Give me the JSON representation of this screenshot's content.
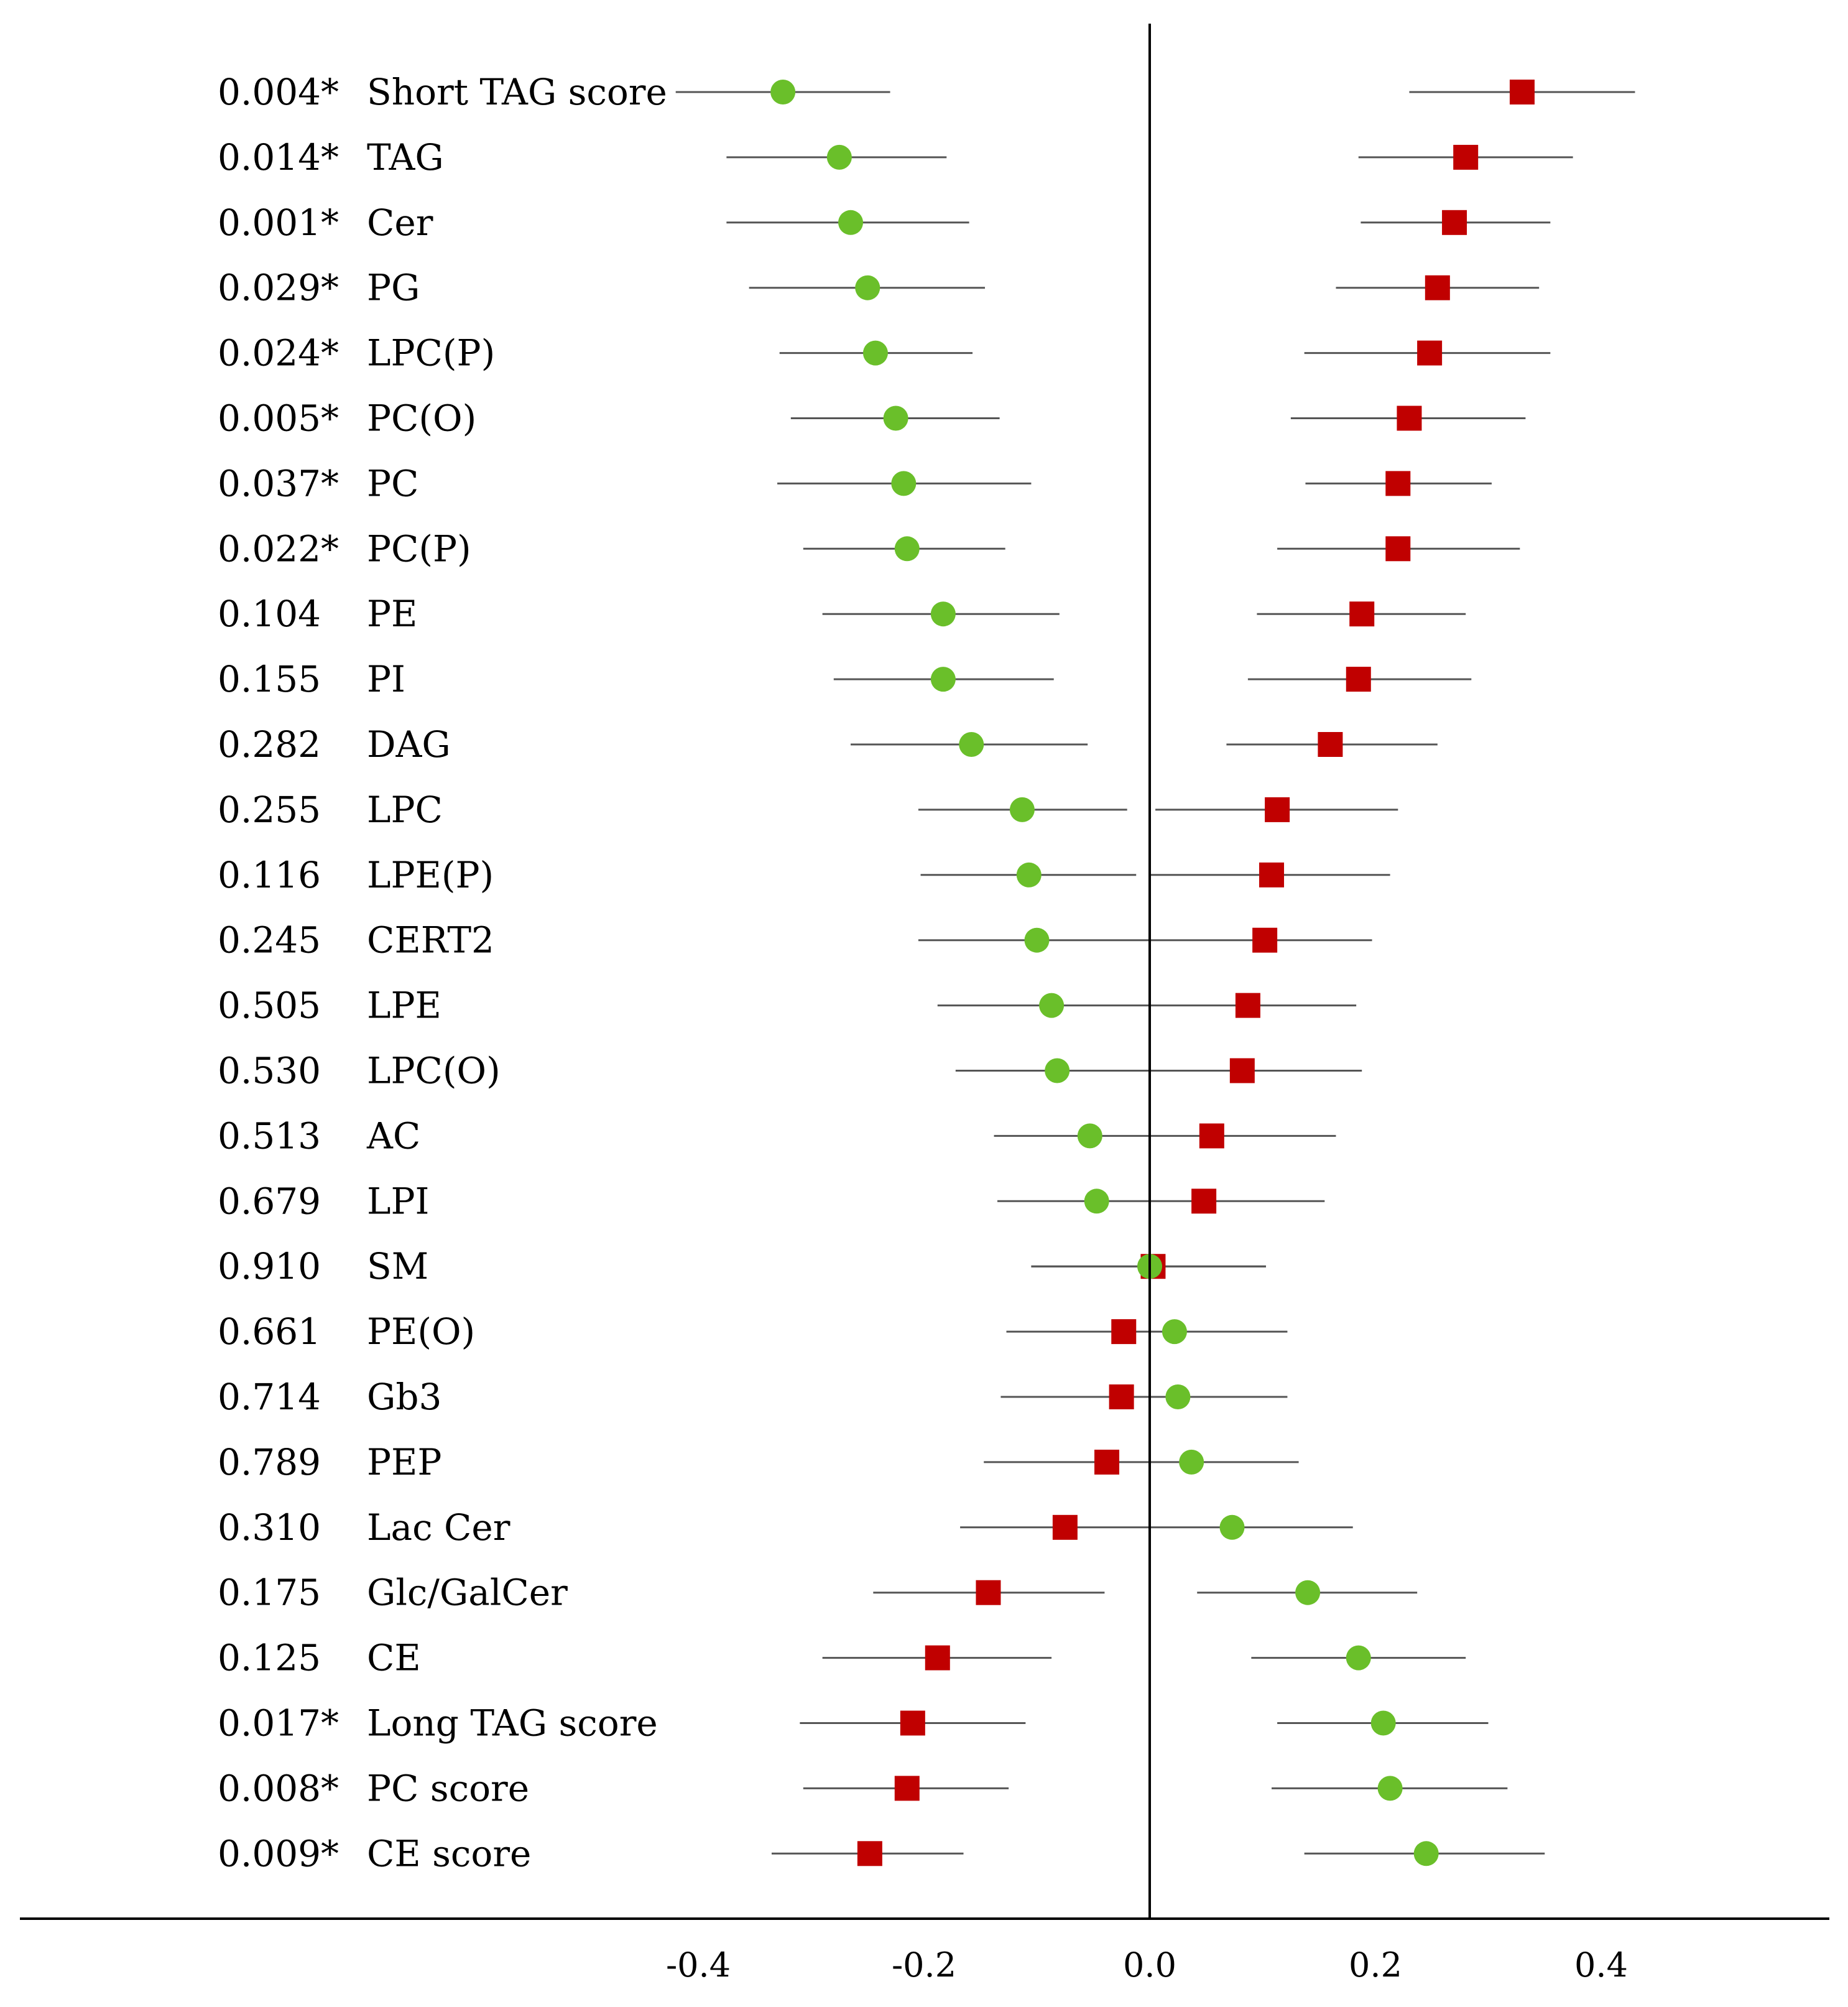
{
  "chart_data": {
    "type": "forest",
    "title": "",
    "xlabel": "",
    "ylabel": "",
    "xlim": [
      -1.0,
      0.6
    ],
    "xticks": [
      -0.4,
      -0.2,
      0.0,
      0.2,
      0.4
    ],
    "xtick_labels": [
      "-0.4",
      "-0.2",
      "0.0",
      "0.2",
      "0.4"
    ],
    "colors": {
      "green": "#6abf2a",
      "red": "#c00000",
      "line": "#555555",
      "axis": "#000000"
    },
    "rows": [
      {
        "p": "0.004*",
        "name": "Short TAG score",
        "green": {
          "est": -0.325,
          "lo": -0.42,
          "hi": -0.23
        },
        "red": {
          "est": 0.33,
          "lo": 0.23,
          "hi": 0.43
        }
      },
      {
        "p": "0.014*",
        "name": "TAG",
        "green": {
          "est": -0.275,
          "lo": -0.375,
          "hi": -0.18
        },
        "red": {
          "est": 0.28,
          "lo": 0.185,
          "hi": 0.375
        }
      },
      {
        "p": "0.001*",
        "name": "Cer",
        "green": {
          "est": -0.265,
          "lo": -0.375,
          "hi": -0.16
        },
        "red": {
          "est": 0.27,
          "lo": 0.187,
          "hi": 0.355
        }
      },
      {
        "p": "0.029*",
        "name": "PG",
        "green": {
          "est": -0.25,
          "lo": -0.355,
          "hi": -0.146
        },
        "red": {
          "est": 0.255,
          "lo": 0.165,
          "hi": 0.345
        }
      },
      {
        "p": "0.024*",
        "name": "LPC(P)",
        "green": {
          "est": -0.243,
          "lo": -0.328,
          "hi": -0.157
        },
        "red": {
          "est": 0.248,
          "lo": 0.137,
          "hi": 0.355
        }
      },
      {
        "p": "0.005*",
        "name": "PC(O)",
        "green": {
          "est": -0.225,
          "lo": -0.318,
          "hi": -0.133
        },
        "red": {
          "est": 0.23,
          "lo": 0.125,
          "hi": 0.333
        }
      },
      {
        "p": "0.037*",
        "name": "PC",
        "green": {
          "est": -0.218,
          "lo": -0.33,
          "hi": -0.105
        },
        "red": {
          "est": 0.22,
          "lo": 0.138,
          "hi": 0.303
        }
      },
      {
        "p": "0.022*",
        "name": "PC(P)",
        "green": {
          "est": -0.215,
          "lo": -0.307,
          "hi": -0.128
        },
        "red": {
          "est": 0.22,
          "lo": 0.113,
          "hi": 0.328
        }
      },
      {
        "p": "0.104",
        "name": "PE",
        "green": {
          "est": -0.183,
          "lo": -0.29,
          "hi": -0.08
        },
        "red": {
          "est": 0.188,
          "lo": 0.095,
          "hi": 0.28
        }
      },
      {
        "p": "0.155",
        "name": "PI",
        "green": {
          "est": -0.183,
          "lo": -0.28,
          "hi": -0.085
        },
        "red": {
          "est": 0.185,
          "lo": 0.087,
          "hi": 0.285
        }
      },
      {
        "p": "0.282",
        "name": "DAG",
        "green": {
          "est": -0.158,
          "lo": -0.265,
          "hi": -0.055
        },
        "red": {
          "est": 0.16,
          "lo": 0.068,
          "hi": 0.255
        }
      },
      {
        "p": "0.255",
        "name": "LPC",
        "green": {
          "est": -0.113,
          "lo": -0.205,
          "hi": -0.02
        },
        "red": {
          "est": 0.113,
          "lo": 0.005,
          "hi": 0.22
        }
      },
      {
        "p": "0.116",
        "name": "LPE(P)",
        "green": {
          "est": -0.107,
          "lo": -0.203,
          "hi": -0.012
        },
        "red": {
          "est": 0.108,
          "lo": 0.0,
          "hi": 0.213
        }
      },
      {
        "p": "0.245",
        "name": "CERT2",
        "green": {
          "est": -0.1,
          "lo": -0.205,
          "hi": 0.0
        },
        "red": {
          "est": 0.102,
          "lo": 0.0,
          "hi": 0.197
        }
      },
      {
        "p": "0.505",
        "name": "LPE",
        "green": {
          "est": -0.087,
          "lo": -0.188,
          "hi": 0.0
        },
        "red": {
          "est": 0.087,
          "lo": 0.0,
          "hi": 0.183
        }
      },
      {
        "p": "0.530",
        "name": "LPC(O)",
        "green": {
          "est": -0.082,
          "lo": -0.172,
          "hi": 0.0
        },
        "red": {
          "est": 0.082,
          "lo": 0.0,
          "hi": 0.188
        }
      },
      {
        "p": "0.513",
        "name": "AC",
        "green": {
          "est": -0.053,
          "lo": -0.138,
          "hi": 0.0
        },
        "red": {
          "est": 0.055,
          "lo": 0.0,
          "hi": 0.165
        }
      },
      {
        "p": "0.679",
        "name": "LPI",
        "green": {
          "est": -0.047,
          "lo": -0.135,
          "hi": 0.0
        },
        "red": {
          "est": 0.048,
          "lo": 0.0,
          "hi": 0.155
        }
      },
      {
        "p": "0.910",
        "name": "SM",
        "green": {
          "est": 0.0,
          "lo": -0.105,
          "hi": 0.103
        },
        "red": {
          "est": 0.003,
          "lo": -0.105,
          "hi": 0.103
        }
      },
      {
        "p": "0.661",
        "name": "PE(O)",
        "green": {
          "est": 0.022,
          "lo": 0.0,
          "hi": 0.122
        },
        "red": {
          "est": -0.023,
          "lo": -0.127,
          "hi": 0.0
        }
      },
      {
        "p": "0.714",
        "name": "Gb3",
        "green": {
          "est": 0.025,
          "lo": 0.0,
          "hi": 0.122
        },
        "red": {
          "est": -0.025,
          "lo": -0.132,
          "hi": 0.0
        }
      },
      {
        "p": "0.789",
        "name": "PEP",
        "green": {
          "est": 0.037,
          "lo": 0.0,
          "hi": 0.132
        },
        "red": {
          "est": -0.038,
          "lo": -0.147,
          "hi": 0.0
        }
      },
      {
        "p": "0.310",
        "name": "Lac Cer",
        "green": {
          "est": 0.073,
          "lo": 0.0,
          "hi": 0.18
        },
        "red": {
          "est": -0.075,
          "lo": -0.168,
          "hi": 0.0
        }
      },
      {
        "p": "0.175",
        "name": "Glc/GalCer",
        "green": {
          "est": 0.14,
          "lo": 0.042,
          "hi": 0.237
        },
        "red": {
          "est": -0.143,
          "lo": -0.245,
          "hi": -0.04
        }
      },
      {
        "p": "0.125",
        "name": "CE",
        "green": {
          "est": 0.185,
          "lo": 0.09,
          "hi": 0.28
        },
        "red": {
          "est": -0.188,
          "lo": -0.29,
          "hi": -0.087
        }
      },
      {
        "p": "0.017*",
        "name": "Long TAG score",
        "green": {
          "est": 0.207,
          "lo": 0.113,
          "hi": 0.3
        },
        "red": {
          "est": -0.21,
          "lo": -0.31,
          "hi": -0.11
        }
      },
      {
        "p": "0.008*",
        "name": "PC score",
        "green": {
          "est": 0.213,
          "lo": 0.108,
          "hi": 0.317
        },
        "red": {
          "est": -0.215,
          "lo": -0.307,
          "hi": -0.125
        }
      },
      {
        "p": "0.009*",
        "name": "CE score",
        "green": {
          "est": 0.245,
          "lo": 0.137,
          "hi": 0.35
        },
        "red": {
          "est": -0.248,
          "lo": -0.335,
          "hi": -0.165
        }
      }
    ]
  }
}
